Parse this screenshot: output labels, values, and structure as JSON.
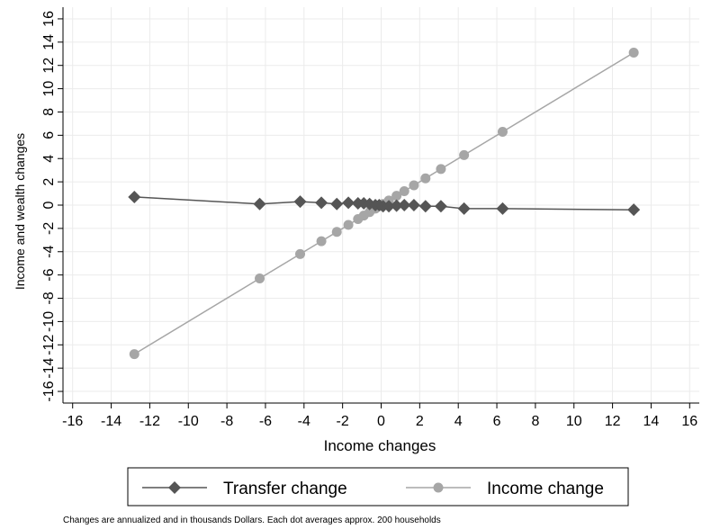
{
  "chart_data": {
    "type": "line",
    "title": "",
    "xlabel": "Income changes",
    "ylabel": "Income and wealth changes",
    "note": "Changes are annualized and in thousands Dollars. Each dot averages approx. 200 households",
    "xlim": [
      -16.5,
      16.5
    ],
    "ylim": [
      -17,
      17
    ],
    "xticks": [
      -16,
      -14,
      -12,
      -10,
      -8,
      -6,
      -4,
      -2,
      0,
      2,
      4,
      6,
      8,
      10,
      12,
      14,
      16
    ],
    "yticks": [
      -16,
      -14,
      -12,
      -10,
      -8,
      -6,
      -4,
      -2,
      0,
      2,
      4,
      6,
      8,
      10,
      12,
      14,
      16
    ],
    "grid": true,
    "legend_position": "bottom",
    "colors": {
      "transfer": "#555555",
      "income": "#a6a6a6",
      "grid": "#ebebeb"
    },
    "series": [
      {
        "name": "Transfer change",
        "marker": "diamond",
        "x": [
          -12.8,
          -6.3,
          -4.2,
          -3.1,
          -2.3,
          -1.7,
          -1.2,
          -0.9,
          -0.6,
          -0.3,
          -0.1,
          0.1,
          0.4,
          0.8,
          1.2,
          1.7,
          2.3,
          3.1,
          4.3,
          6.3,
          13.1
        ],
        "y": [
          0.7,
          0.1,
          0.3,
          0.2,
          0.1,
          0.2,
          0.15,
          0.15,
          0.1,
          0.0,
          0.0,
          -0.1,
          -0.1,
          -0.05,
          0.0,
          0.0,
          -0.1,
          -0.1,
          -0.3,
          -0.3,
          -0.4
        ]
      },
      {
        "name": "Income change",
        "marker": "circle",
        "x": [
          -12.8,
          -6.3,
          -4.2,
          -3.1,
          -2.3,
          -1.7,
          -1.2,
          -0.9,
          -0.6,
          -0.3,
          -0.1,
          0.1,
          0.4,
          0.8,
          1.2,
          1.7,
          2.3,
          3.1,
          4.3,
          6.3,
          13.1
        ],
        "y": [
          -12.8,
          -6.3,
          -4.2,
          -3.1,
          -2.3,
          -1.7,
          -1.2,
          -0.9,
          -0.6,
          -0.3,
          -0.1,
          0.1,
          0.4,
          0.8,
          1.2,
          1.7,
          2.3,
          3.1,
          4.3,
          6.3,
          13.1
        ]
      }
    ]
  }
}
